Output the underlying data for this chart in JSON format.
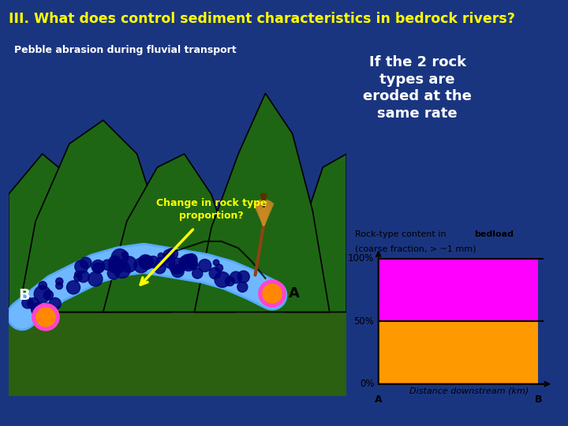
{
  "background_color": "#1a3580",
  "title": "III. What does control sediment characteristics in bedrock rivers?",
  "title_color": "#ffff00",
  "subtitle": "Pebble abrasion during fluvial transport",
  "subtitle_color": "#ffffff",
  "right_text_line1": "If the 2 rock",
  "right_text_line2": "types are",
  "right_text_line3": "eroded at the",
  "right_text_line4": "same rate",
  "right_text_color": "#ffffff",
  "chart_title_normal": "Rock-type content in ",
  "chart_title_bold": "bedload",
  "chart_title_line2": "(coarse fraction, > ~1 mm)",
  "chart_bg": "#ffffff",
  "orange_color": "#ff9900",
  "magenta_color": "#ff00ff",
  "xlabel": "Distance downstream (km)",
  "mountain_color": "#1e6614",
  "mountain_edge": "#000000",
  "river_light": "#55aaff",
  "river_dark": "#3377dd",
  "pebble_color": "#000077",
  "ground_color": "#2a6010",
  "change_text": "Change in rock type\nproportion?",
  "change_text_color": "#ffff00",
  "broom_handle": "#8B4513",
  "broom_head": "#cc8822",
  "broom_tip": "#553300"
}
